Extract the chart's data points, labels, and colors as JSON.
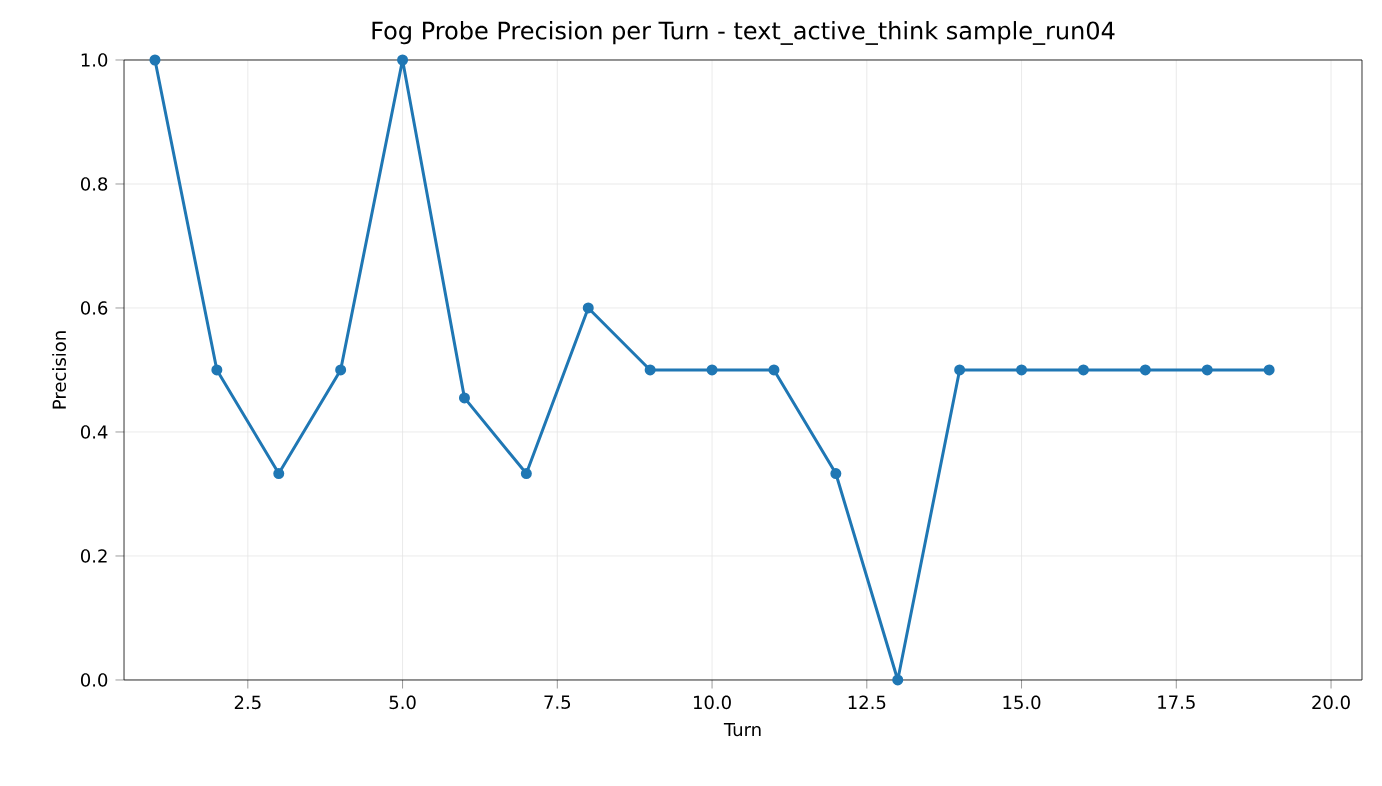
{
  "chart_data": {
    "type": "line",
    "title": "Fog Probe Precision per Turn - text_active_think sample_run04",
    "xlabel": "Turn",
    "ylabel": "Precision",
    "x": [
      1,
      2,
      3,
      4,
      5,
      6,
      7,
      8,
      9,
      10,
      11,
      12,
      13,
      14,
      15,
      16,
      17,
      18,
      19
    ],
    "series": [
      {
        "color": "#1f77b4",
        "values": [
          1.0,
          0.5,
          0.333,
          0.5,
          1.0,
          0.455,
          0.333,
          0.6,
          0.5,
          0.5,
          0.5,
          0.333,
          0.0,
          0.5,
          0.5,
          0.5,
          0.5,
          0.5,
          0.5
        ]
      }
    ],
    "xlim": [
      0.5,
      20.5
    ],
    "xticks": [
      2.5,
      {
        "value": 5,
        "label": "5.0"
      },
      7.5,
      {
        "value": 10,
        "label": "10.0"
      },
      12.5,
      {
        "value": 15,
        "label": "15.0"
      },
      17.5,
      {
        "value": 20,
        "label": "20.0"
      }
    ],
    "ylim": [
      0,
      1
    ],
    "yticks": [
      {
        "value": 0,
        "label": "0.0"
      },
      0.2,
      0.4,
      0.6,
      0.8,
      {
        "value": 1,
        "label": "1.0"
      }
    ],
    "grid": true,
    "marker": "circle",
    "line_style": "solid"
  }
}
